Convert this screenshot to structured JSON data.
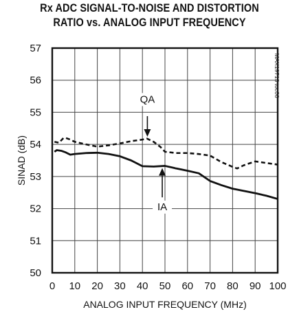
{
  "chart_data": {
    "type": "line",
    "title_line1": "Rx ADC SIGNAL-TO-NOISE AND DISTORTION",
    "title_line2": "RATIO vs. ANALOG INPUT FREQUENCY",
    "xlabel": "ANALOG INPUT FREQUENCY (MHz)",
    "ylabel": "SINAD (dB)",
    "xlim": [
      0,
      100
    ],
    "ylim": [
      50,
      57
    ],
    "xticks": [
      0,
      10,
      20,
      30,
      40,
      50,
      60,
      70,
      80,
      90,
      100
    ],
    "yticks": [
      50,
      51,
      52,
      53,
      54,
      55,
      56,
      57
    ],
    "grid": true,
    "figure_code": "MAX19713 toc06",
    "series": [
      {
        "name": "IA",
        "style": "solid",
        "x": [
          1,
          2,
          4,
          6,
          8,
          10,
          15,
          20,
          25,
          30,
          35,
          40,
          45,
          50,
          55,
          60,
          65,
          70,
          75,
          80,
          85,
          90,
          95,
          100
        ],
        "y": [
          53.77,
          53.82,
          53.8,
          53.75,
          53.68,
          53.7,
          53.73,
          53.74,
          53.7,
          53.63,
          53.5,
          53.32,
          53.31,
          53.33,
          53.25,
          53.18,
          53.1,
          52.86,
          52.73,
          52.62,
          52.55,
          52.48,
          52.4,
          52.3
        ]
      },
      {
        "name": "QA",
        "style": "dashed",
        "x": [
          1,
          3,
          5,
          6,
          8,
          10,
          15,
          20,
          25,
          30,
          35,
          40,
          42,
          45,
          48,
          50,
          55,
          60,
          65,
          70,
          75,
          80,
          82,
          85,
          90,
          95,
          100
        ],
        "y": [
          54.08,
          54.05,
          54.2,
          54.2,
          54.15,
          54.08,
          54.0,
          53.93,
          53.97,
          54.03,
          54.1,
          54.15,
          54.18,
          54.08,
          53.92,
          53.77,
          53.73,
          53.73,
          53.7,
          53.65,
          53.45,
          53.3,
          53.25,
          53.35,
          53.47,
          53.42,
          53.37
        ]
      }
    ],
    "annotations": [
      {
        "label": "QA",
        "series": "QA",
        "arrow_to_x": 42.2,
        "text_x": 42.2,
        "text_y": 55.3,
        "arrow_from_y": 54.88
      },
      {
        "label": "IA",
        "series": "IA",
        "arrow_to_x": 48.8,
        "text_x": 48.8,
        "text_y": 51.95,
        "arrow_from_y": 52.35
      }
    ]
  }
}
